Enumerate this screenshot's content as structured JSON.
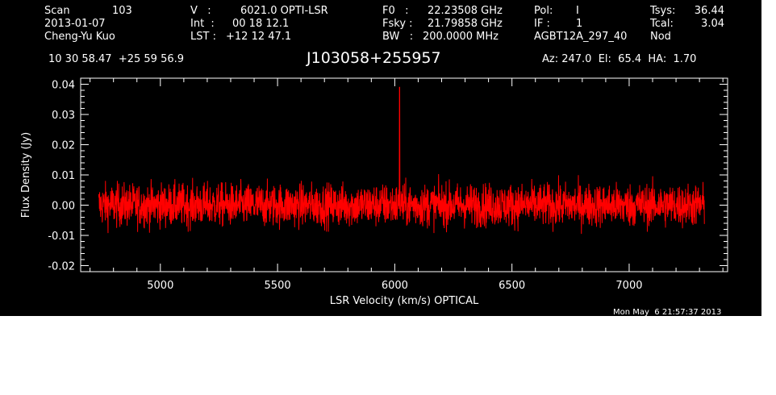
{
  "header": {
    "scan_label": "Scan",
    "scan_value": "103",
    "date": "2013-01-07",
    "observer": "Cheng-Yu Kuo",
    "v_label": "V   :",
    "v_value": "6021.0 OPTI-LSR",
    "int_label": "Int  :",
    "int_value": "00 18 12.1",
    "lst_label": "LST :",
    "lst_value": "+12 12 47.1",
    "f0_label": "F0   :",
    "f0_value": "22.23508 GHz",
    "fsky_label": "Fsky :",
    "fsky_value": "21.79858 GHz",
    "bw_label": "BW   :",
    "bw_value": "200.0000 MHz",
    "pol_label": "Pol:",
    "pol_value": "I",
    "if_label": "IF :",
    "if_value": "1",
    "project": "AGBT12A_297_40",
    "tsys_label": "Tsys:",
    "tsys_value": "36.44",
    "tcal_label": "Tcal:",
    "tcal_value": "3.04",
    "mode": "Nod"
  },
  "coords": "10 30 58.47  +25 59 56.9",
  "source": "J103058+255957",
  "pointing": "Az: 247.0  El:  65.4  HA:  1.70",
  "timestamp": "Mon May  6 21:57:37 2013",
  "colors": {
    "background": "#000000",
    "foreground": "#ffffff",
    "trace": "#ff0000"
  },
  "chart_data": {
    "type": "line",
    "title": "J103058+255957",
    "xlabel": "LSR Velocity (km/s) OPTICAL",
    "ylabel": "Flux Density (Jy)",
    "xlim": [
      4660,
      7420
    ],
    "ylim": [
      -0.022,
      0.042
    ],
    "x_ticks": [
      5000,
      5500,
      6000,
      6500,
      7000
    ],
    "x_tick_labels": [
      "5000",
      "5500",
      "6000",
      "6500",
      "7000"
    ],
    "y_ticks": [
      -0.02,
      -0.01,
      0.0,
      0.01,
      0.02,
      0.03,
      0.04
    ],
    "y_tick_labels": [
      "-0.02",
      "-0.01",
      "0.00",
      "0.01",
      "0.02",
      "0.03",
      "0.04"
    ],
    "series": [
      {
        "x_start": 4737,
        "x_end": 7321,
        "noise_rms": 0.0035,
        "envelope": [
          -0.009,
          0.009
        ],
        "peak": {
          "x": 6021,
          "y": 0.039
        }
      }
    ],
    "grid": false,
    "legend": "none"
  }
}
